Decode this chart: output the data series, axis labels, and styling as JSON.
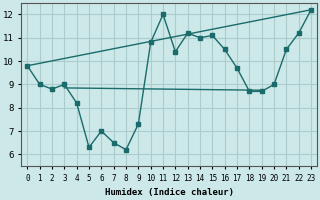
{
  "xlabel": "Humidex (Indice chaleur)",
  "xlim": [
    -0.5,
    23.5
  ],
  "ylim": [
    5.5,
    12.5
  ],
  "yticks": [
    6,
    7,
    8,
    9,
    10,
    11,
    12
  ],
  "xticks": [
    0,
    1,
    2,
    3,
    4,
    5,
    6,
    7,
    8,
    9,
    10,
    11,
    12,
    13,
    14,
    15,
    16,
    17,
    18,
    19,
    20,
    21,
    22,
    23
  ],
  "bg_color": "#cce8e8",
  "grid_color": "#aacccc",
  "line_color": "#1a6b6b",
  "series1_x": [
    0,
    1,
    2,
    3,
    4,
    5,
    6,
    7,
    8,
    9,
    10,
    11,
    12,
    13,
    14,
    15,
    16,
    17,
    18,
    19,
    20,
    21,
    22,
    23
  ],
  "series1_y": [
    9.8,
    9.0,
    8.8,
    9.0,
    8.2,
    6.3,
    7.0,
    6.5,
    6.2,
    7.3,
    10.8,
    12.0,
    10.4,
    11.2,
    11.0,
    11.1,
    10.5,
    9.7,
    8.7,
    8.7,
    9.0,
    10.5,
    11.2,
    12.2
  ],
  "series2_x": [
    0,
    23
  ],
  "series2_y": [
    9.8,
    12.2
  ],
  "series3_x": [
    3,
    19
  ],
  "series3_y": [
    8.85,
    8.75
  ]
}
